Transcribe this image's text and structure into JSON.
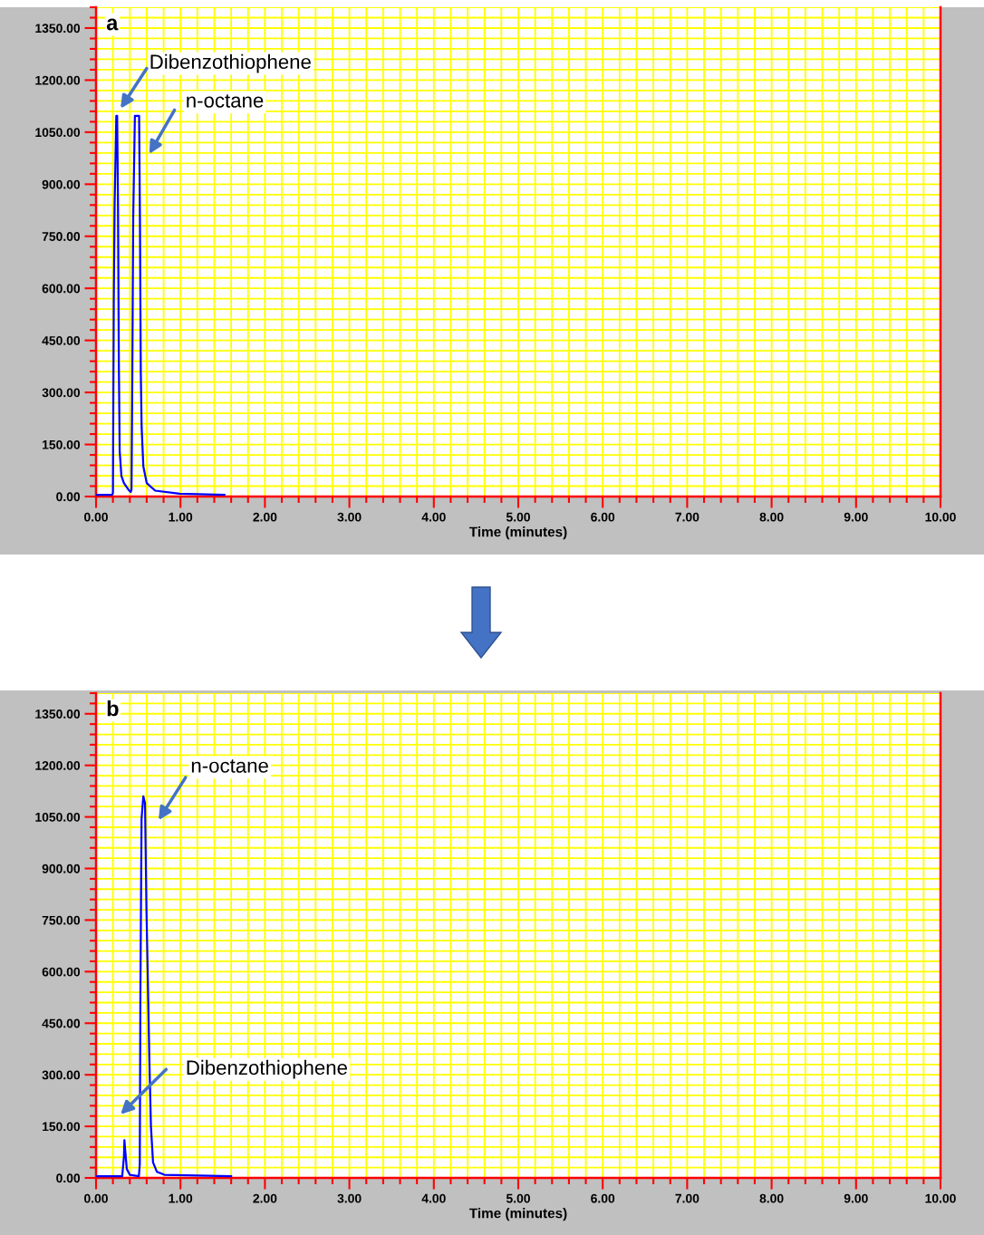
{
  "chart_data": [
    {
      "type": "line",
      "title": "a",
      "xlabel": "Time (minutes)",
      "series": [
        {
          "color": "#0000ff",
          "x": [
            0,
            0.19,
            0.2,
            0.21,
            0.22,
            0.24,
            0.25,
            0.26,
            0.27,
            0.28,
            0.3,
            0.33,
            0.38,
            0.41,
            0.42,
            0.43,
            0.44,
            0.46,
            0.51,
            0.52,
            0.53,
            0.54,
            0.56,
            0.6,
            0.7,
            0.99,
            1.52
          ],
          "values": [
            5,
            5,
            10,
            560,
            840,
            1097,
            1097,
            840,
            384,
            131,
            60,
            39,
            21,
            13,
            20,
            368,
            800,
            1097,
            1097,
            796,
            358,
            200,
            87,
            39,
            17,
            8,
            5
          ]
        }
      ],
      "xlim": [
        0,
        10
      ],
      "ylim": [
        0,
        1410
      ],
      "xticks": [
        {
          "value": 0,
          "label": "0.00"
        },
        {
          "value": 1,
          "label": "1.00"
        },
        {
          "value": 2,
          "label": "2.00"
        },
        {
          "value": 3,
          "label": "3.00"
        },
        {
          "value": 4,
          "label": "4.00"
        },
        {
          "value": 5,
          "label": "5.00"
        },
        {
          "value": 6,
          "label": "6.00"
        },
        {
          "value": 7,
          "label": "7.00"
        },
        {
          "value": 8,
          "label": "8.00"
        },
        {
          "value": 9,
          "label": "9.00"
        },
        {
          "value": 10,
          "label": "10.00"
        }
      ],
      "yticks": [
        {
          "value": 0,
          "label": "0.00"
        },
        {
          "value": 150,
          "label": "150.00"
        },
        {
          "value": 300,
          "label": "300.00"
        },
        {
          "value": 450,
          "label": "450.00"
        },
        {
          "value": 600,
          "label": "600.00"
        },
        {
          "value": 750,
          "label": "750.00"
        },
        {
          "value": 900,
          "label": "900.00"
        },
        {
          "value": 1050,
          "label": "1050.00"
        },
        {
          "value": 1200,
          "label": "1200.00"
        },
        {
          "value": 1350,
          "label": "1350.00"
        }
      ],
      "grid": true,
      "annotations": [
        "Dibenzothiophene",
        "n-octane"
      ]
    },
    {
      "type": "line",
      "title": "b",
      "xlabel": "Time (minutes)",
      "series": [
        {
          "color": "#0000ff",
          "x": [
            0,
            0.31,
            0.33,
            0.336,
            0.346,
            0.364,
            0.4,
            0.507,
            0.518,
            0.525,
            0.539,
            0.56,
            0.58,
            0.597,
            0.632,
            0.65,
            0.675,
            0.72,
            0.81,
            1.6
          ],
          "values": [
            5,
            5,
            61,
            110,
            79,
            26,
            9,
            5,
            39,
            526,
            1045,
            1110,
            1090,
            781,
            338,
            150,
            45,
            18,
            9,
            5
          ]
        }
      ],
      "xlim": [
        0,
        10
      ],
      "ylim": [
        0,
        1410
      ],
      "xticks": [
        {
          "value": 0,
          "label": "0.00"
        },
        {
          "value": 1,
          "label": "1.00"
        },
        {
          "value": 2,
          "label": "2.00"
        },
        {
          "value": 3,
          "label": "3.00"
        },
        {
          "value": 4,
          "label": "4.00"
        },
        {
          "value": 5,
          "label": "5.00"
        },
        {
          "value": 6,
          "label": "6.00"
        },
        {
          "value": 7,
          "label": "7.00"
        },
        {
          "value": 8,
          "label": "8.00"
        },
        {
          "value": 9,
          "label": "9.00"
        },
        {
          "value": 10,
          "label": "10.00"
        }
      ],
      "yticks": [
        {
          "value": 0,
          "label": "0.00"
        },
        {
          "value": 150,
          "label": "150.00"
        },
        {
          "value": 300,
          "label": "300.00"
        },
        {
          "value": 450,
          "label": "450.00"
        },
        {
          "value": 600,
          "label": "600.00"
        },
        {
          "value": 750,
          "label": "750.00"
        },
        {
          "value": 900,
          "label": "900.00"
        },
        {
          "value": 1050,
          "label": "1050.00"
        },
        {
          "value": 1200,
          "label": "1200.00"
        },
        {
          "value": 1350,
          "label": "1350.00"
        }
      ],
      "grid": true,
      "annotations": [
        "n-octane",
        "Dibenzothiophene"
      ]
    }
  ]
}
